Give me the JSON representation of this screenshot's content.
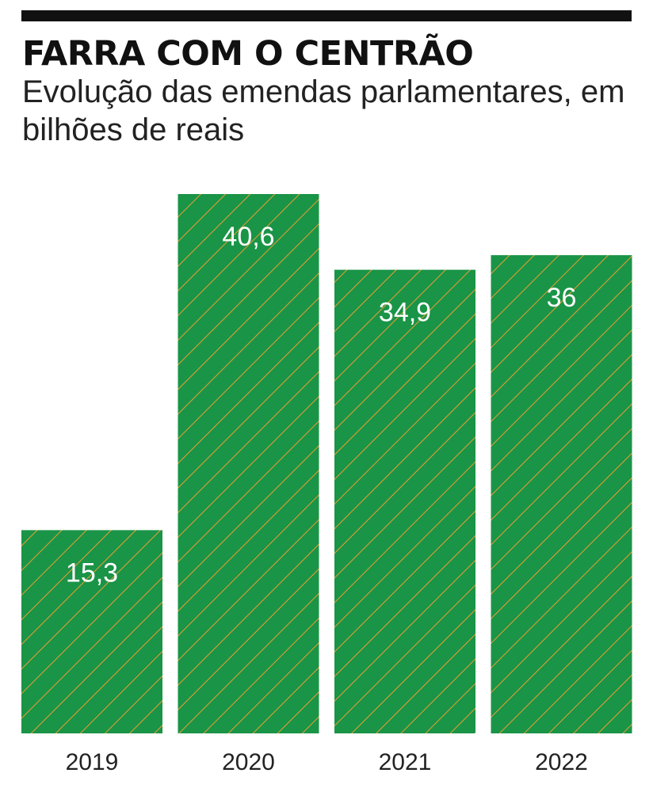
{
  "header": {
    "title": "FARRA COM O CENTRÃO",
    "subtitle": "Evolução das emendas parlamentares, em bilhões de reais"
  },
  "colors": {
    "bar": "#1a9447",
    "hatch": "#e8a033",
    "label": "#ffffff",
    "axis_text": "#222222",
    "rule": "#111111"
  },
  "chart_data": {
    "type": "bar",
    "title": "FARRA COM O CENTRÃO",
    "subtitle": "Evolução das emendas parlamentares, em bilhões de reais",
    "categories": [
      "2019",
      "2020",
      "2021",
      "2022"
    ],
    "values": [
      15.3,
      40.6,
      34.9,
      36
    ],
    "value_labels": [
      "15,3",
      "40,6",
      "34,9",
      "36"
    ],
    "xlabel": "",
    "ylabel": "",
    "ylim": [
      0,
      40.6
    ],
    "grid": false,
    "legend": "none"
  }
}
